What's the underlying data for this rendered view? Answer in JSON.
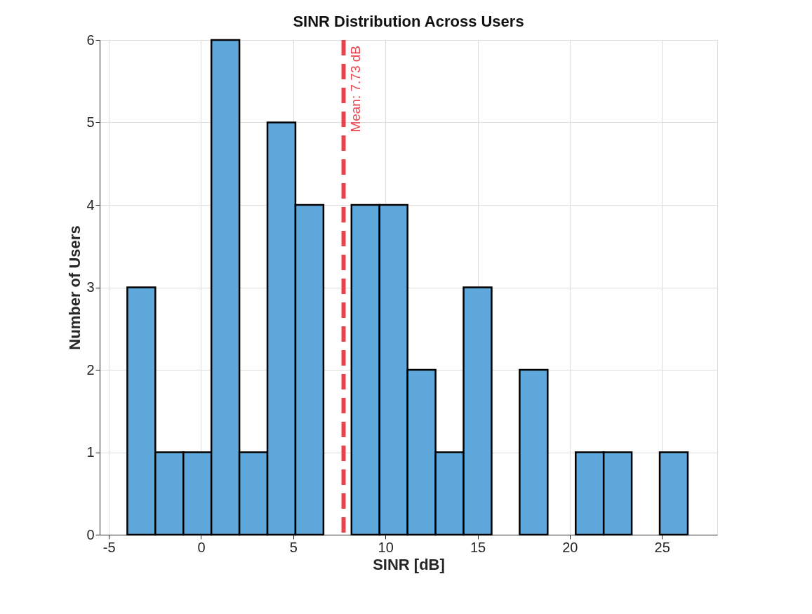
{
  "chart_data": {
    "type": "histogram",
    "title": "SINR Distribution Across Users",
    "xlabel": "SINR [dB]",
    "ylabel": "Number of Users",
    "bins": [
      -4,
      -2.48,
      -0.96,
      0.56,
      2.08,
      3.6,
      5.12,
      6.64,
      8.16,
      9.68,
      11.2,
      12.72,
      14.24,
      15.76,
      17.28,
      18.8,
      20.32,
      21.84,
      23.36,
      24.88,
      26.4
    ],
    "values": [
      3,
      1,
      1,
      6,
      1,
      5,
      4,
      0,
      4,
      4,
      2,
      1,
      3,
      0,
      2,
      0,
      1,
      1,
      0,
      1
    ],
    "color": "#5fa8dc",
    "xlim": [
      -5.5,
      28
    ],
    "xticks": [
      -5,
      0,
      5,
      10,
      15,
      20,
      25
    ],
    "ylim": [
      0,
      6
    ],
    "yticks": [
      0,
      1,
      2,
      3,
      4,
      5,
      6
    ],
    "grid": true,
    "ref_lines": [
      {
        "axis": "x",
        "value": 7.73,
        "label": "Mean: 7.73 dB",
        "color": "#e8434a",
        "line_style": "dashed"
      }
    ]
  }
}
